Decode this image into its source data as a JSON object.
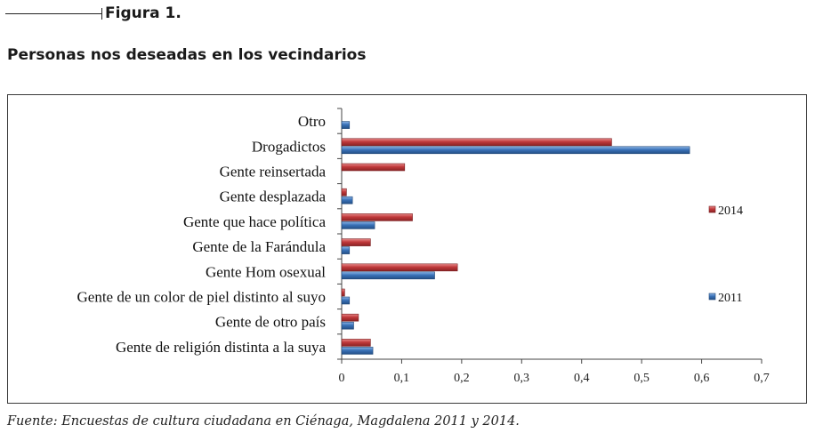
{
  "header": {
    "figure_label": "Figura 1.",
    "title": "Personas nos deseadas en los vecindarios"
  },
  "source_note": "Fuente: Encuestas de cultura ciudadana en Ciénaga, Magdalena 2011 y 2014.",
  "chart_data": {
    "type": "bar",
    "orientation": "horizontal",
    "categories": [
      "Otro",
      "Drogadictos",
      "Gente reinsertada",
      "Gente desplazada",
      "Gente que hace política",
      "Gente de la Farándula",
      "Gente Hom osexual",
      "Gente de un color de piel distinto al suyo",
      "Gente de otro país",
      "Gente de religión distinta a la suya"
    ],
    "series": [
      {
        "name": "2014",
        "color": "#c0393b",
        "values": [
          0,
          0.45,
          0.105,
          0.008,
          0.118,
          0.048,
          0.193,
          0.005,
          0.028,
          0.048
        ]
      },
      {
        "name": "2011",
        "color": "#3a72b8",
        "values": [
          0.013,
          0.58,
          0,
          0.018,
          0.055,
          0.013,
          0.155,
          0.013,
          0.02,
          0.052
        ]
      }
    ],
    "xlim": [
      0,
      0.7
    ],
    "xticks": [
      "0",
      "0,1",
      "0,2",
      "0,3",
      "0,4",
      "0,5",
      "0,6",
      "0,7"
    ],
    "grid": false,
    "legend_position": "right"
  }
}
